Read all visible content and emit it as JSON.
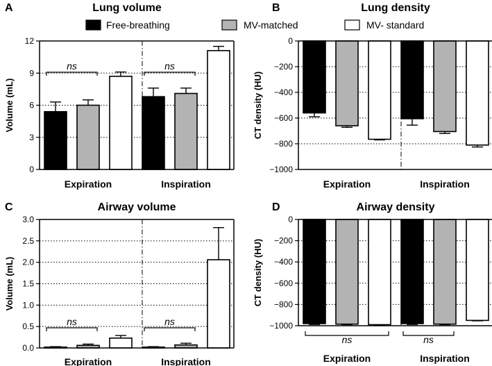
{
  "chart_data": [
    {
      "panel_label": "A",
      "type": "bar",
      "title": "Lung volume",
      "xlabel": "",
      "ylabel": "Volume (mL)",
      "ylim": [
        0,
        12
      ],
      "yticks": [
        "0",
        "3",
        "6",
        "9",
        "12"
      ],
      "grid": "dotted",
      "categories": [
        "Expiration",
        "Inspiration"
      ],
      "series": [
        {
          "name": "Free-breathing",
          "values": [
            5.4,
            6.8
          ],
          "errors": [
            0.9,
            0.8
          ]
        },
        {
          "name": "MV-matched",
          "values": [
            6.0,
            7.1
          ],
          "errors": [
            0.5,
            0.5
          ]
        },
        {
          "name": "MV-standard",
          "values": [
            8.7,
            11.1
          ],
          "errors": [
            0.4,
            0.4
          ]
        }
      ],
      "annotations": [
        {
          "text": "ns",
          "category": 0,
          "from_series": 0,
          "to_series": 1
        },
        {
          "text": "ns",
          "category": 1,
          "from_series": 0,
          "to_series": 1
        }
      ]
    },
    {
      "panel_label": "B",
      "type": "bar",
      "title": "Lung density",
      "xlabel": "",
      "ylabel": "CT density (HU)",
      "ylim": [
        -1000,
        0
      ],
      "yticks": [
        "0",
        "−200",
        "−400",
        "−600",
        "−800",
        "−1000"
      ],
      "grid": "dotted",
      "categories": [
        "Expiration",
        "Inspiration"
      ],
      "series": [
        {
          "name": "Free-breathing",
          "values": [
            -560,
            -605
          ],
          "errors": [
            30,
            50
          ]
        },
        {
          "name": "MV-matched",
          "values": [
            -660,
            -705
          ],
          "errors": [
            12,
            15
          ]
        },
        {
          "name": "MV-standard",
          "values": [
            -765,
            -810
          ],
          "errors": [
            5,
            15
          ]
        }
      ],
      "annotations": []
    },
    {
      "panel_label": "C",
      "type": "bar",
      "title": "Airway volume",
      "xlabel": "",
      "ylabel": "Volume (mL)",
      "ylim": [
        0,
        3.0
      ],
      "yticks": [
        "0.0",
        "0.5",
        "1.0",
        "1.5",
        "2.0",
        "2.5",
        "3.0"
      ],
      "grid": "dotted",
      "categories": [
        "Expiration",
        "Inspiration"
      ],
      "series": [
        {
          "name": "Free-breathing",
          "values": [
            0.02,
            0.02
          ],
          "errors": [
            0.01,
            0.01
          ]
        },
        {
          "name": "MV-matched",
          "values": [
            0.06,
            0.07
          ],
          "errors": [
            0.03,
            0.04
          ]
        },
        {
          "name": "MV-standard",
          "values": [
            0.23,
            2.06
          ],
          "errors": [
            0.06,
            0.75
          ]
        }
      ],
      "annotations": [
        {
          "text": "ns",
          "category": 0,
          "from_series": 0,
          "to_series": 1
        },
        {
          "text": "ns",
          "category": 1,
          "from_series": 0,
          "to_series": 1
        }
      ]
    },
    {
      "panel_label": "D",
      "type": "bar",
      "title": "Airway density",
      "xlabel": "",
      "ylabel": "CT density (HU)",
      "ylim": [
        -1000,
        0
      ],
      "yticks": [
        "0",
        "−200",
        "−400",
        "−600",
        "−800",
        "−1000"
      ],
      "grid": "dotted",
      "categories": [
        "Expiration",
        "Inspiration"
      ],
      "series": [
        {
          "name": "Free-breathing",
          "values": [
            -980,
            -980
          ],
          "errors": [
            8,
            8
          ]
        },
        {
          "name": "MV-matched",
          "values": [
            -985,
            -985
          ],
          "errors": [
            5,
            5
          ]
        },
        {
          "name": "MV-standard",
          "values": [
            -990,
            -950
          ],
          "errors": [
            4,
            4
          ]
        }
      ],
      "annotations": [
        {
          "text": "ns",
          "category": 0,
          "from_series": 0,
          "to_series": 2
        },
        {
          "text": "ns",
          "category": 1,
          "from_series": 0,
          "to_series": 1
        }
      ]
    }
  ],
  "legend": {
    "position": "top-center",
    "items": [
      {
        "label": "Free-breathing",
        "color": "#000000"
      },
      {
        "label": "MV-matched",
        "color": "#b3b3b3"
      },
      {
        "label": "MV- standard",
        "color": "#ffffff"
      }
    ]
  },
  "colors": {
    "series": [
      "#000000",
      "#b3b3b3",
      "#ffffff"
    ],
    "stroke": "#000000"
  }
}
